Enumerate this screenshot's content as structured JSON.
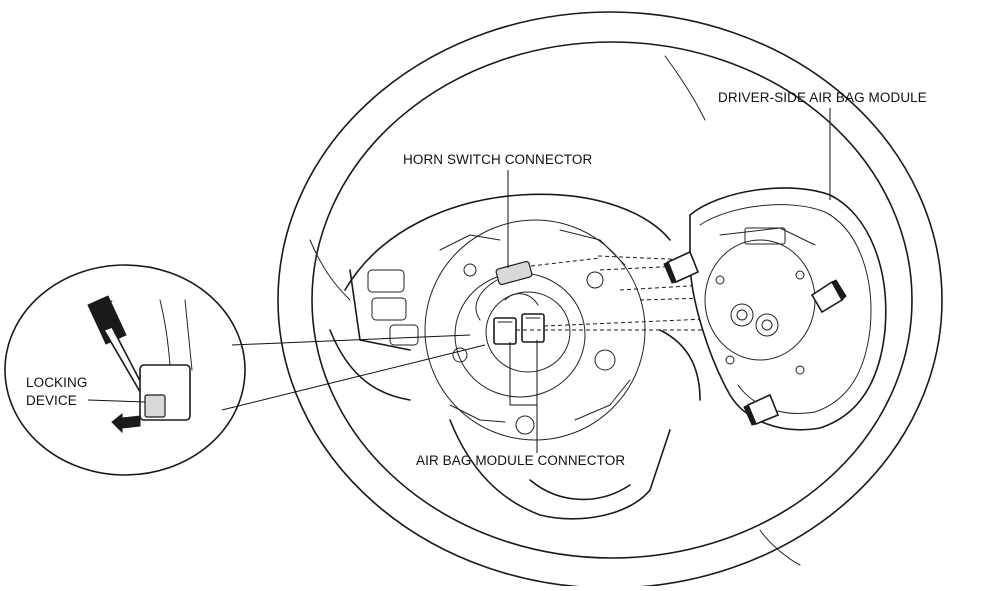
{
  "labels": {
    "module": "DRIVER-SIDE AIR BAG MODULE",
    "horn": "HORN SWITCH CONNECTOR",
    "airbag_connector": "AIR BAG MODULE CONNECTOR",
    "locking_line1": "LOCKING",
    "locking_line2": "DEVICE"
  }
}
